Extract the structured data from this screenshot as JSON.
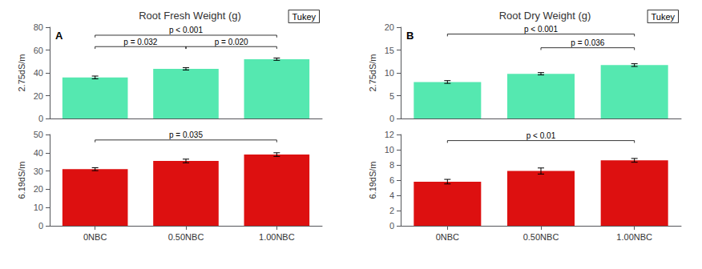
{
  "chart_data": [
    {
      "type": "bar",
      "title": "Root Fresh Weight (g)",
      "label": "A",
      "annotation": "Tukey",
      "ylabel": "2.75dS/m",
      "categories": [
        "0NBC",
        "0.50NBC",
        "1.00NBC"
      ],
      "values": [
        36,
        43.5,
        52
      ],
      "errors": [
        1.2,
        1.0,
        1.0
      ],
      "color": "#55e8b0",
      "ylim": [
        0,
        80
      ],
      "yticks": [
        0,
        20,
        40,
        60,
        80
      ],
      "grid": false,
      "tick_labels": "y",
      "significance": [
        {
          "from": "0NBC",
          "to": "1.00NBC",
          "y": 73,
          "label": "p < 0.001"
        },
        {
          "from": "0NBC",
          "to": "0.50NBC",
          "y": 63,
          "label": "p = 0.032"
        },
        {
          "from": "0.50NBC",
          "to": "1.00NBC",
          "y": 63,
          "label": "p = 0.020"
        }
      ]
    },
    {
      "type": "bar",
      "ylabel": "6.19dS/m",
      "categories": [
        "0NBC",
        "0.50NBC",
        "1.00NBC"
      ],
      "values": [
        31,
        35.5,
        39
      ],
      "errors": [
        0.8,
        1.0,
        1.0
      ],
      "color": "#dd1010",
      "ylim": [
        0,
        50
      ],
      "yticks": [
        0,
        10,
        20,
        30,
        40,
        50
      ],
      "grid": false,
      "significance": [
        {
          "from": "0NBC",
          "to": "1.00NBC",
          "y": 47,
          "label": "p = 0.035"
        }
      ]
    },
    {
      "type": "bar",
      "title": "Root Dry Weight (g)",
      "label": "B",
      "annotation": "Tukey",
      "ylabel": "2.75dS/m",
      "categories": [
        "0NBC",
        "0.50NBC",
        "1.00NBC"
      ],
      "values": [
        8.0,
        9.8,
        11.7
      ],
      "errors": [
        0.3,
        0.25,
        0.3
      ],
      "color": "#55e8b0",
      "ylim": [
        0,
        20
      ],
      "yticks": [
        0,
        5,
        10,
        15,
        20
      ],
      "grid": false,
      "tick_labels": "y",
      "significance": [
        {
          "from": "0NBC",
          "to": "1.00NBC",
          "y": 18.5,
          "label": "p < 0.001"
        },
        {
          "from": "0.50NBC",
          "to": "1.00NBC",
          "y": 15.5,
          "label": "p = 0.036"
        }
      ]
    },
    {
      "type": "bar",
      "ylabel": "6.19dS/m",
      "categories": [
        "0NBC",
        "0.50NBC",
        "1.00NBC"
      ],
      "values": [
        5.8,
        7.2,
        8.6
      ],
      "errors": [
        0.3,
        0.4,
        0.25
      ],
      "color": "#dd1010",
      "ylim": [
        0,
        12
      ],
      "yticks": [
        0,
        2,
        4,
        6,
        8,
        10,
        12
      ],
      "grid": false,
      "significance": [
        {
          "from": "0NBC",
          "to": "1.00NBC",
          "y": 11.2,
          "label": "p < 0.01"
        }
      ]
    }
  ]
}
